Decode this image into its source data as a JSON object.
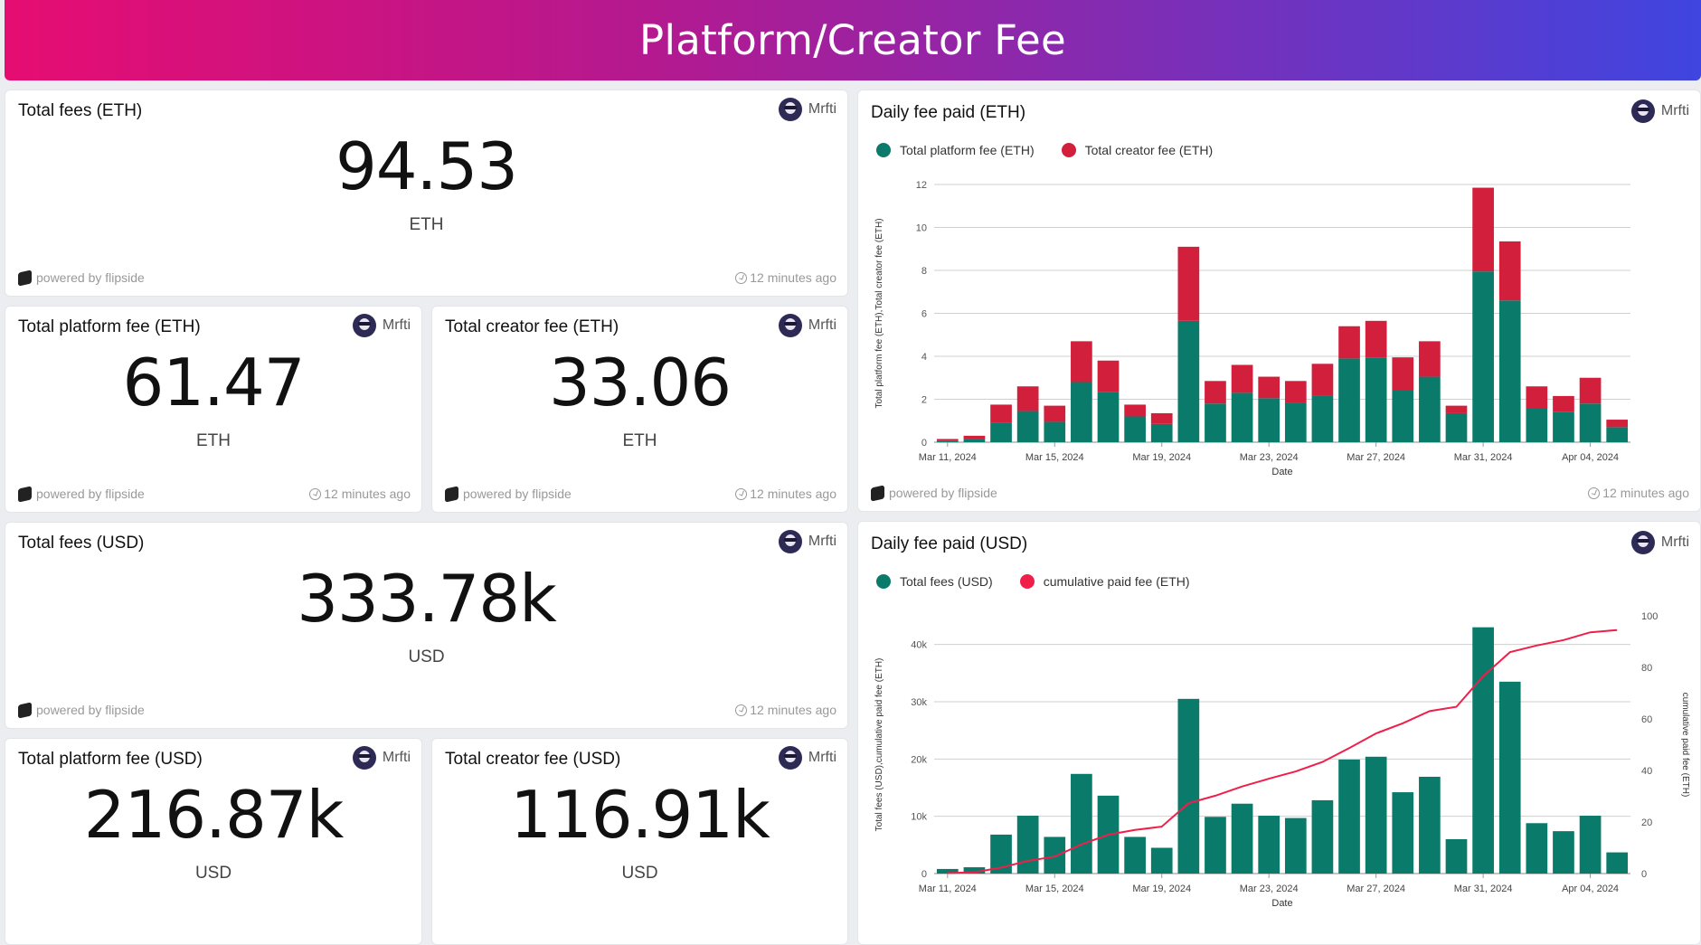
{
  "header": {
    "title": "Platform/Creator Fee"
  },
  "common": {
    "author": "Mrfti",
    "powered": "powered by flipside",
    "updated": "12 minutes ago"
  },
  "kpis": {
    "total_fees_eth": {
      "title": "Total fees (ETH)",
      "value": "94.53",
      "unit": "ETH"
    },
    "platform_fee_eth": {
      "title": "Total platform fee (ETH)",
      "value": "61.47",
      "unit": "ETH"
    },
    "creator_fee_eth": {
      "title": "Total creator fee (ETH)",
      "value": "33.06",
      "unit": "ETH"
    },
    "total_fees_usd": {
      "title": "Total fees (USD)",
      "value": "333.78k",
      "unit": "USD"
    },
    "platform_fee_usd": {
      "title": "Total platform fee (USD)",
      "value": "216.87k",
      "unit": "USD"
    },
    "creator_fee_usd": {
      "title": "Total creator fee (USD)",
      "value": "116.91k",
      "unit": "USD"
    }
  },
  "colors": {
    "platform": "#0a7a6a",
    "creator": "#d11f3c",
    "line": "#ef1f4a"
  },
  "chart_data": [
    {
      "type": "bar",
      "stacked": true,
      "title": "Daily fee paid (ETH)",
      "xlabel": "Date",
      "ylabel": "Total platform fee (ETH),Total creator fee (ETH)",
      "ylim": [
        0,
        12
      ],
      "yticks": [
        0,
        2,
        4,
        6,
        8,
        10,
        12
      ],
      "x_tick_labels": [
        "Mar 11, 2024",
        "Mar 15, 2024",
        "Mar 19, 2024",
        "Mar 23, 2024",
        "Mar 27, 2024",
        "Mar 31, 2024",
        "Apr 04, 2024"
      ],
      "x_tick_indices": [
        0,
        4,
        8,
        12,
        16,
        20,
        24
      ],
      "categories": [
        "Mar 11",
        "Mar 12",
        "Mar 13",
        "Mar 14",
        "Mar 15",
        "Mar 16",
        "Mar 17",
        "Mar 18",
        "Mar 19",
        "Mar 20",
        "Mar 21",
        "Mar 22",
        "Mar 23",
        "Mar 24",
        "Mar 25",
        "Mar 26",
        "Mar 27",
        "Mar 28",
        "Mar 29",
        "Mar 30",
        "Mar 31",
        "Apr 01",
        "Apr 02",
        "Apr 03",
        "Apr 04",
        "Apr 05"
      ],
      "series": [
        {
          "name": "Total platform fee (ETH)",
          "values": [
            0.05,
            0.15,
            0.9,
            1.45,
            0.95,
            2.8,
            2.35,
            1.2,
            0.85,
            5.65,
            1.8,
            2.3,
            2.05,
            1.85,
            2.15,
            3.9,
            3.95,
            2.4,
            3.05,
            1.35,
            7.95,
            6.6,
            1.6,
            1.4,
            1.8,
            0.7
          ]
        },
        {
          "name": "Total creator fee (ETH)",
          "values": [
            0.1,
            0.15,
            0.85,
            1.15,
            0.75,
            1.9,
            1.45,
            0.55,
            0.5,
            3.45,
            1.05,
            1.3,
            1.0,
            1.0,
            1.5,
            1.5,
            1.7,
            1.55,
            1.65,
            0.35,
            3.9,
            2.75,
            1.0,
            0.75,
            1.2,
            0.35
          ]
        }
      ]
    },
    {
      "type": "bar+line",
      "title": "Daily fee paid (USD)",
      "xlabel": "Date",
      "ylabel": "Total fees (USD),cumulative paid fee (ETH)",
      "y2label": "cumulative paid fee (ETH)",
      "ylim": [
        0,
        45000
      ],
      "yticks": [
        0,
        10000,
        20000,
        30000,
        40000
      ],
      "ytick_labels": [
        "0",
        "10k",
        "20k",
        "30k",
        "40k"
      ],
      "y2lim": [
        0,
        100
      ],
      "y2ticks": [
        0,
        20,
        40,
        60,
        80,
        100
      ],
      "x_tick_labels": [
        "Mar 11, 2024",
        "Mar 15, 2024",
        "Mar 19, 2024",
        "Mar 23, 2024",
        "Mar 27, 2024",
        "Mar 31, 2024",
        "Apr 04, 2024"
      ],
      "x_tick_indices": [
        0,
        4,
        8,
        12,
        16,
        20,
        24
      ],
      "categories": [
        "Mar 11",
        "Mar 12",
        "Mar 13",
        "Mar 14",
        "Mar 15",
        "Mar 16",
        "Mar 17",
        "Mar 18",
        "Mar 19",
        "Mar 20",
        "Mar 21",
        "Mar 22",
        "Mar 23",
        "Mar 24",
        "Mar 25",
        "Mar 26",
        "Mar 27",
        "Mar 28",
        "Mar 29",
        "Mar 30",
        "Mar 31",
        "Apr 01",
        "Apr 02",
        "Apr 03",
        "Apr 04",
        "Apr 05"
      ],
      "series": [
        {
          "name": "Total fees (USD)",
          "kind": "bar",
          "axis": "left",
          "values": [
            800,
            1100,
            6800,
            10100,
            6400,
            17400,
            13600,
            6400,
            4500,
            30500,
            9900,
            12200,
            10100,
            9700,
            12800,
            19900,
            20400,
            14200,
            16900,
            6000,
            43000,
            33500,
            8800,
            7400,
            10100,
            3700
          ]
        },
        {
          "name": "cumulative paid fee (ETH)",
          "kind": "line",
          "axis": "right",
          "values": [
            0.2,
            0.5,
            2.3,
            4.9,
            6.6,
            11.3,
            15.1,
            16.9,
            18.2,
            27.3,
            30.2,
            33.8,
            36.8,
            39.6,
            43.3,
            48.7,
            54.4,
            58.3,
            63.0,
            64.7,
            76.6,
            85.9,
            88.5,
            90.6,
            93.6,
            94.5
          ]
        }
      ]
    }
  ]
}
